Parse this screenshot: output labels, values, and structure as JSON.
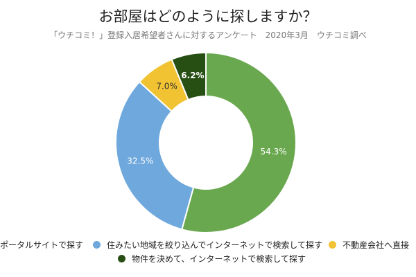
{
  "chart_data": {
    "type": "pie",
    "title": "お部屋はどのように探しますか？",
    "subtitle": "「ウチコミ！」登録入居希望者さんに対するアンケート　2020年3月　ウチコミ調べ",
    "donut": true,
    "slices": [
      {
        "name": "ポータルサイトで探す",
        "value": 54.3,
        "label": "54.3%",
        "color": "#6aa84f"
      },
      {
        "name": "住みたい地域を絞り込んでインターネットで検索して探す",
        "value": 32.5,
        "label": "32.5%",
        "color": "#6fa8dc"
      },
      {
        "name": "不動産会社へ直接",
        "value": 7.0,
        "label": "7.0%",
        "color": "#f1c232"
      },
      {
        "name": "物件を決めて、インターネットで検索して探す",
        "value": 6.2,
        "label": "6.2%",
        "color": "#274e13"
      }
    ],
    "legend_position": "bottom"
  }
}
